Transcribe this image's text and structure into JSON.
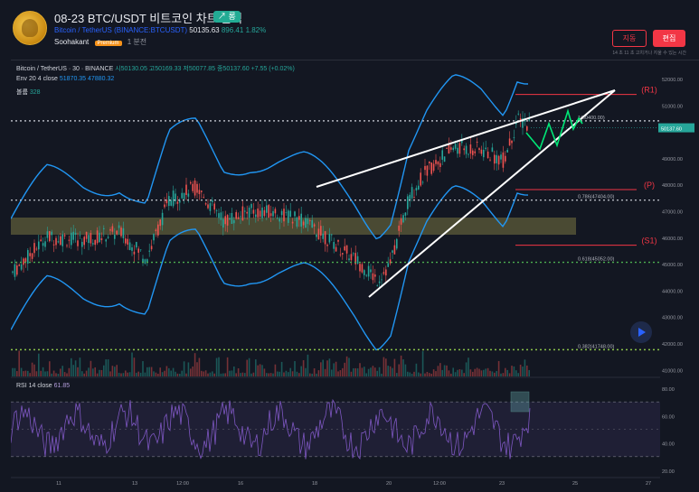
{
  "header": {
    "title": "08-23 BTC/USDT 비트코인 차트 분석",
    "pill": "↗ 롱",
    "symbol_name": "Bitcoin / TetherUS",
    "symbol_code": "(BINANCE:BTCUSDT)",
    "price": "50135.63",
    "change": "896.41",
    "change_pct": "1.82%",
    "author": "Soohakant",
    "badge": "Premium",
    "ago": "1 분전",
    "delete_label": "지동",
    "edit_label": "편집",
    "time_note": "14 초 11 초 고치거나 지울 수 있는 시간"
  },
  "legend": {
    "row1_pair": "Bitcoin / TetherUS · 30 · BINANCE",
    "o": "시50130.05",
    "h": "고50169.33",
    "l": "저50077.85",
    "c": "종50137.60",
    "chg": "+7.55 (+0.02%)",
    "env_label": "Env 20 4 close",
    "env_v1": "51870.35",
    "env_v2": "47880.32",
    "vol_label": "볼륨",
    "vol_value": "328",
    "rsi_label": "RSI 14 close",
    "rsi_value": "61.85"
  },
  "annotations": {
    "r1": "(R1)",
    "p": "(P)",
    "s1": "(S1)",
    "fib_1": "1(50400.00)",
    "fib_0786": "0.786(47404.00)",
    "fib_0618": "0.618(45052.00)",
    "fib_0382": "0.382(41748.00)",
    "last_price": "50137.60"
  },
  "axes": {
    "price_ticks": [
      "52000.00",
      "51000.00",
      "49000.00",
      "48000.00",
      "47000.00",
      "46000.00",
      "45000.00",
      "44000.00",
      "43000.00",
      "42000.00",
      "41000.00"
    ],
    "rsi_ticks": [
      "80.00",
      "60.00",
      "40.00",
      "20.00"
    ],
    "time_ticks": [
      "11",
      "13",
      "12:00",
      "16",
      "18",
      "20",
      "12:00",
      "23",
      "25",
      "27"
    ]
  },
  "colors": {
    "background": "#131722",
    "up": "#26a69a",
    "down": "#ef5350",
    "envelope": "#2196f3",
    "rsi": "#7e57c2",
    "level_red": "#f23645",
    "fib_green": "#4caf50",
    "zone": "#8d8a4a"
  }
}
